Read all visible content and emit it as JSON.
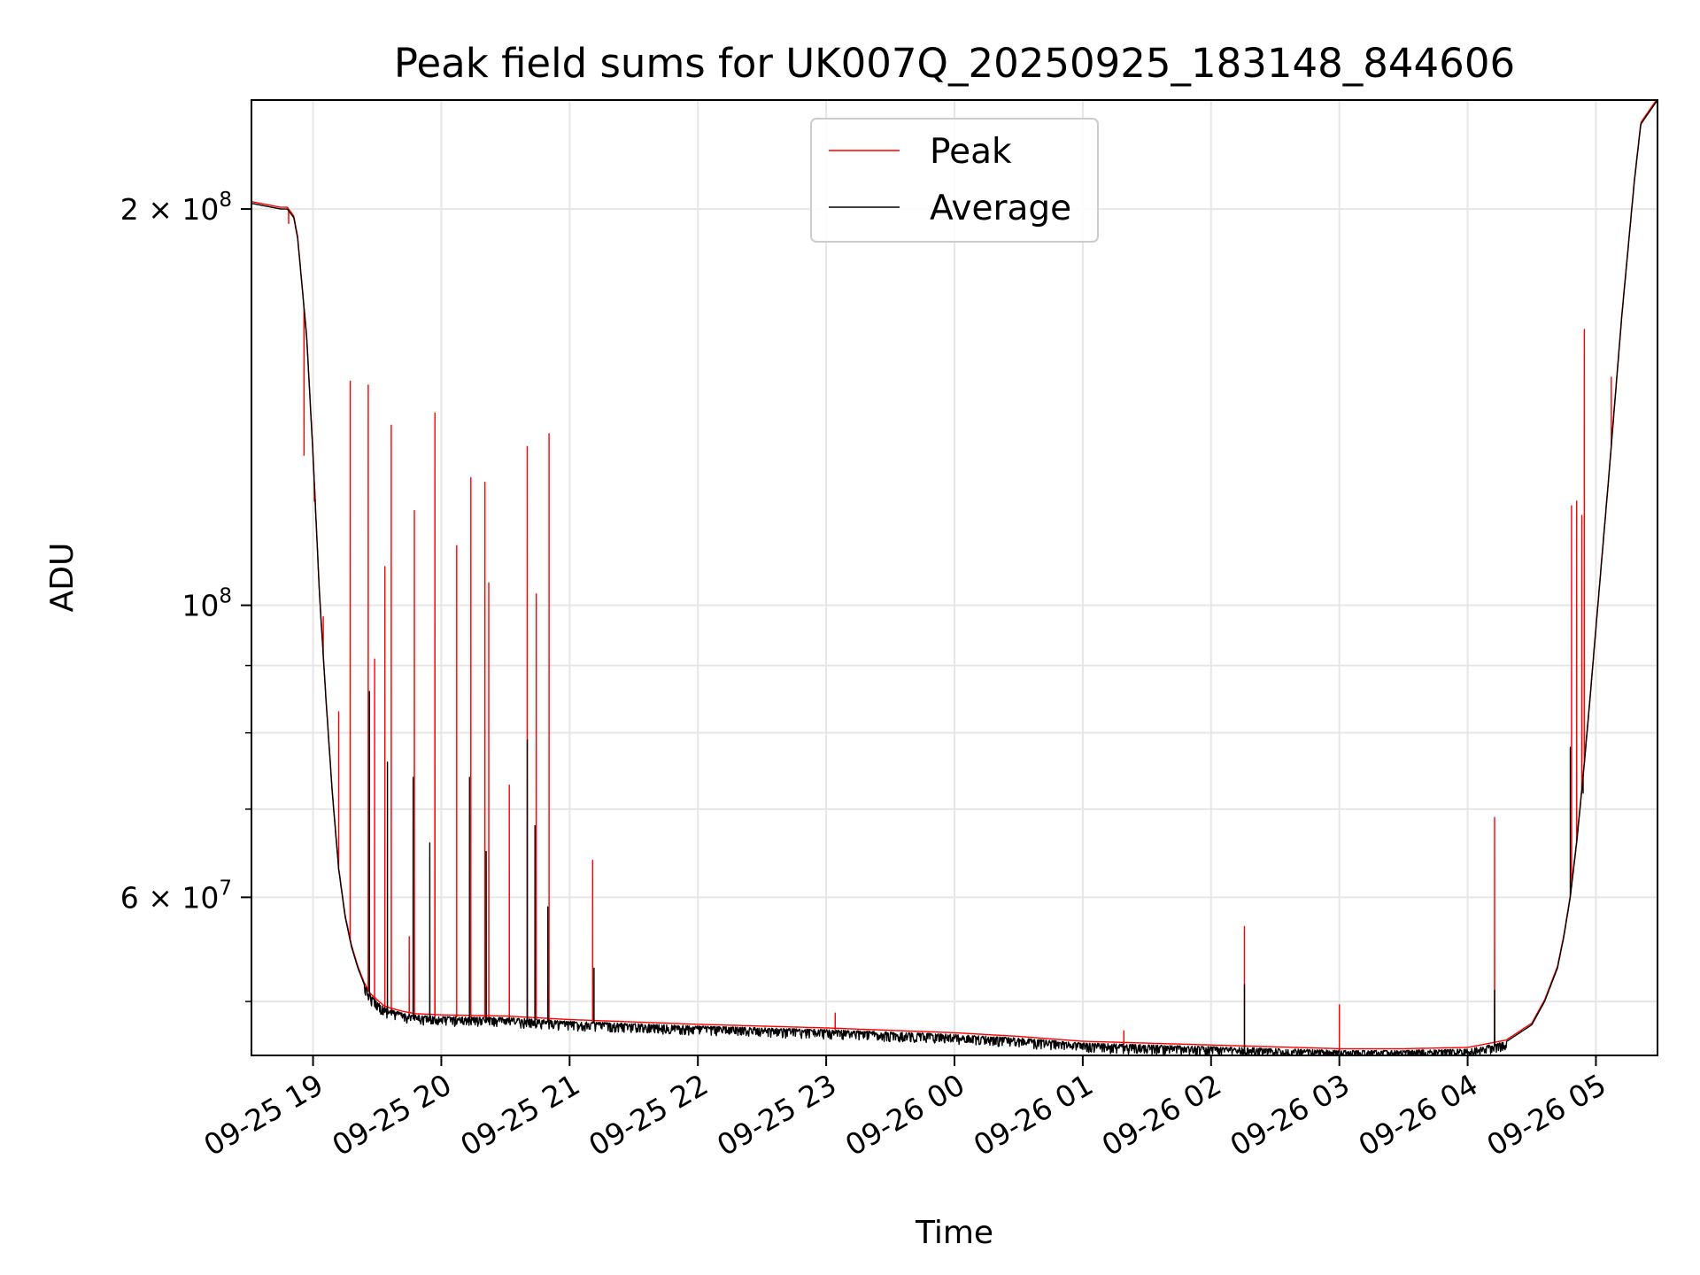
{
  "chart_data": {
    "type": "line",
    "title": "Peak field sums for UK007Q_20250925_183148_844606",
    "xlabel": "Time",
    "ylabel": "ADU",
    "yscale": "log",
    "xlim_hours": [
      -0.48,
      10.48
    ],
    "ylim": [
      45500000,
      242000000
    ],
    "x_tick_labels": [
      "09-25 19",
      "09-25 20",
      "09-25 21",
      "09-25 22",
      "09-25 23",
      "09-26 00",
      "09-26 01",
      "09-26 02",
      "09-26 03",
      "09-26 04",
      "09-26 05"
    ],
    "x_tick_hours": [
      0,
      1,
      2,
      3,
      4,
      5,
      6,
      7,
      8,
      9,
      10
    ],
    "y_major_ticks": [
      {
        "value": 200000000,
        "mantissa": "2",
        "exp": "8"
      },
      {
        "value": 100000000,
        "mantissa": "",
        "exp": "8"
      },
      {
        "value": 60000000,
        "mantissa": "6",
        "exp": "7"
      }
    ],
    "y_minor_ticks": [
      50000000,
      70000000,
      80000000,
      90000000
    ],
    "grid": true,
    "legend": {
      "position": "upper-center",
      "entries": [
        "Peak",
        "Average"
      ]
    },
    "series": [
      {
        "name": "Average",
        "color": "#000000",
        "baseline": {
          "x": [
            -0.48,
            -0.25,
            -0.2,
            -0.15,
            -0.12,
            -0.05,
            0.0,
            0.05,
            0.1,
            0.15,
            0.2,
            0.25,
            0.3,
            0.35,
            0.4,
            0.45,
            0.5,
            0.55,
            0.6,
            0.7,
            0.8,
            1.0,
            1.5,
            2.0,
            3.0,
            4.0,
            5.0,
            5.5,
            6.0,
            7.0,
            8.0,
            8.5,
            9.0,
            9.3,
            9.5,
            9.6,
            9.7,
            9.75,
            9.8,
            9.85,
            9.9,
            9.95,
            10.0,
            10.1,
            10.2,
            10.3,
            10.35,
            10.48
          ],
          "y": [
            202000000,
            200000000,
            200000000,
            197000000,
            190000000,
            160000000,
            130000000,
            102000000,
            85000000,
            72000000,
            63000000,
            58000000,
            55000000,
            53000000,
            51500000,
            50500000,
            50000000,
            49500000,
            49300000,
            49000000,
            48800000,
            48700000,
            48600000,
            48300000,
            47900000,
            47600000,
            47200000,
            46900000,
            46500000,
            46200000,
            45900000,
            45900000,
            46000000,
            46600000,
            48000000,
            50000000,
            53000000,
            56000000,
            60000000,
            66000000,
            74000000,
            84000000,
            96000000,
            125000000,
            165000000,
            210000000,
            232000000,
            242000000
          ]
        },
        "noise_fraction": 0.012,
        "noise_region_hours": [
          0.4,
          9.3
        ],
        "spikes": [
          {
            "x": 0.44,
            "y": 86000000
          },
          {
            "x": 0.58,
            "y": 76000000
          },
          {
            "x": 0.78,
            "y": 74000000
          },
          {
            "x": 0.91,
            "y": 66000000
          },
          {
            "x": 1.22,
            "y": 74000000
          },
          {
            "x": 1.35,
            "y": 65000000
          },
          {
            "x": 1.67,
            "y": 79000000
          },
          {
            "x": 1.73,
            "y": 68000000
          },
          {
            "x": 1.83,
            "y": 59000000
          },
          {
            "x": 2.19,
            "y": 53000000
          },
          {
            "x": 7.26,
            "y": 51500000
          },
          {
            "x": 9.21,
            "y": 51000000
          },
          {
            "x": 9.8,
            "y": 78000000
          },
          {
            "x": 9.9,
            "y": 72000000
          }
        ]
      },
      {
        "name": "Peak",
        "color": "#ff0000",
        "spikes": [
          {
            "x": -0.19,
            "y": 195000000
          },
          {
            "x": -0.07,
            "y": 130000000
          },
          {
            "x": 0.01,
            "y": 120000000
          },
          {
            "x": 0.08,
            "y": 98000000
          },
          {
            "x": 0.2,
            "y": 83000000
          },
          {
            "x": 0.29,
            "y": 148000000
          },
          {
            "x": 0.43,
            "y": 147000000
          },
          {
            "x": 0.48,
            "y": 91000000
          },
          {
            "x": 0.56,
            "y": 107000000
          },
          {
            "x": 0.61,
            "y": 137000000
          },
          {
            "x": 0.75,
            "y": 56000000
          },
          {
            "x": 0.79,
            "y": 118000000
          },
          {
            "x": 0.95,
            "y": 140000000
          },
          {
            "x": 1.12,
            "y": 111000000
          },
          {
            "x": 1.23,
            "y": 125000000
          },
          {
            "x": 1.34,
            "y": 124000000
          },
          {
            "x": 1.37,
            "y": 104000000
          },
          {
            "x": 1.53,
            "y": 73000000
          },
          {
            "x": 1.67,
            "y": 132000000
          },
          {
            "x": 1.74,
            "y": 102000000
          },
          {
            "x": 1.84,
            "y": 135000000
          },
          {
            "x": 2.18,
            "y": 64000000
          },
          {
            "x": 4.07,
            "y": 49000000
          },
          {
            "x": 6.32,
            "y": 47500000
          },
          {
            "x": 7.26,
            "y": 57000000
          },
          {
            "x": 8.0,
            "y": 49700000
          },
          {
            "x": 9.21,
            "y": 69000000
          },
          {
            "x": 9.81,
            "y": 119000000
          },
          {
            "x": 9.85,
            "y": 120000000
          },
          {
            "x": 9.89,
            "y": 117000000
          },
          {
            "x": 9.91,
            "y": 162000000
          },
          {
            "x": 10.12,
            "y": 149000000
          }
        ]
      }
    ]
  }
}
